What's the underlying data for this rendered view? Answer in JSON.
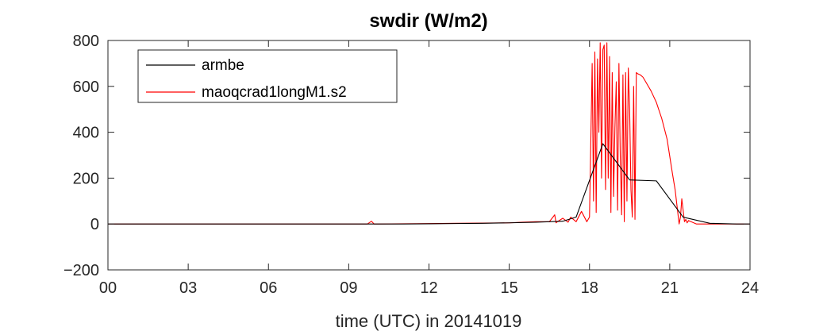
{
  "chart_data": {
    "type": "line",
    "title": "swdir  (W/m2)",
    "xlabel": "time (UTC) in 20141019",
    "ylabel": "",
    "xlim": [
      0,
      24
    ],
    "ylim": [
      -200,
      800
    ],
    "grid": false,
    "legend_position": "top-left",
    "x_ticks": [
      0,
      3,
      6,
      9,
      12,
      15,
      18,
      21,
      24
    ],
    "x_tick_labels": [
      "00",
      "03",
      "06",
      "09",
      "12",
      "15",
      "18",
      "21",
      "24"
    ],
    "y_ticks": [
      -200,
      0,
      200,
      400,
      600,
      800
    ],
    "y_tick_labels": [
      "−200",
      "0",
      "200",
      "400",
      "600",
      "800"
    ],
    "series": [
      {
        "name": "armbe",
        "color": "#000000",
        "x": [
          0,
          1,
          2,
          3,
          4,
          5,
          6,
          7,
          8,
          9,
          10,
          11,
          12,
          13,
          14,
          15,
          16,
          17,
          17.5,
          18.5,
          19.5,
          20.5,
          21.5,
          22.5,
          23.5,
          24
        ],
        "y": [
          0,
          0,
          0,
          0,
          0,
          0,
          0,
          0,
          0,
          0,
          0,
          0,
          1,
          2,
          3,
          5,
          8,
          12,
          30,
          350,
          192,
          188,
          30,
          3,
          0,
          0
        ]
      },
      {
        "name": "maoqcrad1longM1.s2",
        "color": "#ff0000",
        "x": [
          0,
          9.7,
          9.85,
          9.95,
          10.1,
          12,
          13,
          14,
          15,
          15.5,
          16,
          16.5,
          16.7,
          16.75,
          16.8,
          17,
          17.2,
          17.3,
          17.5,
          17.7,
          17.9,
          18,
          18.1,
          18.15,
          18.2,
          18.25,
          18.3,
          18.35,
          18.4,
          18.45,
          18.5,
          18.55,
          18.6,
          18.65,
          18.7,
          18.75,
          18.8,
          18.85,
          18.9,
          18.95,
          19,
          19.05,
          19.1,
          19.15,
          19.2,
          19.25,
          19.3,
          19.35,
          19.4,
          19.45,
          19.5,
          19.55,
          19.6,
          19.65,
          19.7,
          19.75,
          19.8,
          19.9,
          20,
          20.1,
          20.3,
          20.5,
          20.7,
          20.9,
          21.1,
          21.2,
          21.3,
          21.35,
          21.4,
          21.45,
          21.5,
          21.55,
          21.6,
          21.65,
          21.7,
          22,
          22.5,
          23,
          24
        ],
        "y": [
          0,
          0,
          12,
          0,
          0,
          2,
          3,
          4,
          5,
          8,
          10,
          10,
          40,
          5,
          10,
          25,
          8,
          30,
          10,
          55,
          10,
          30,
          700,
          100,
          750,
          50,
          720,
          400,
          790,
          200,
          760,
          780,
          150,
          790,
          200,
          730,
          50,
          660,
          120,
          420,
          620,
          60,
          700,
          300,
          40,
          650,
          10,
          660,
          100,
          680,
          500,
          150,
          30,
          600,
          20,
          660,
          655,
          650,
          640,
          620,
          580,
          530,
          460,
          370,
          220,
          150,
          50,
          0,
          30,
          110,
          60,
          10,
          20,
          5,
          15,
          0,
          0,
          0,
          0
        ]
      }
    ]
  }
}
